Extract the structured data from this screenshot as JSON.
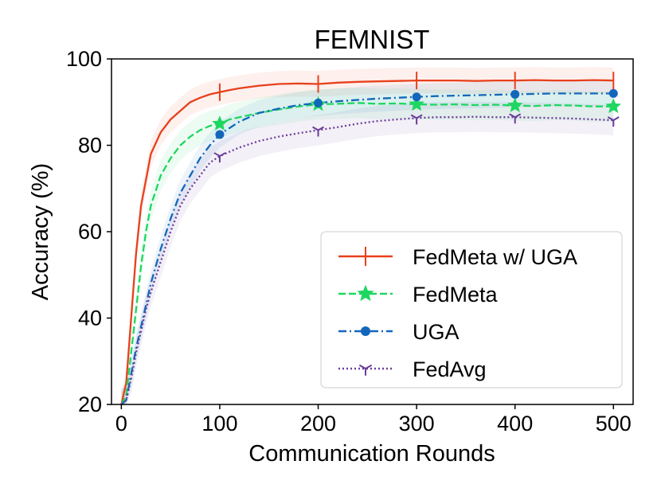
{
  "chart_data": {
    "type": "line",
    "title": "FEMNIST",
    "xlabel": "Communication Rounds",
    "ylabel": "Accuracy (%)",
    "xlim": [
      -10,
      520
    ],
    "ylim": [
      20,
      100
    ],
    "xticks": [
      0,
      100,
      200,
      300,
      400,
      500
    ],
    "yticks": [
      20,
      40,
      60,
      80,
      100
    ],
    "grid": false,
    "legend_position": "lower-right",
    "x": [
      0,
      5,
      10,
      15,
      20,
      25,
      30,
      40,
      50,
      60,
      70,
      80,
      90,
      100,
      110,
      120,
      140,
      160,
      180,
      200,
      220,
      240,
      260,
      280,
      300,
      320,
      340,
      360,
      380,
      400,
      420,
      440,
      460,
      480,
      500
    ],
    "series": [
      {
        "name": "FedMeta w/ UGA",
        "color": "#e8401c",
        "dash": "solid",
        "marker": "vline",
        "marker_x": [
          100,
          200,
          300,
          400,
          500
        ],
        "values": [
          20,
          25,
          40,
          55,
          66,
          72,
          78,
          83,
          86,
          88,
          90,
          91,
          91.8,
          92.3,
          92.8,
          93.2,
          93.8,
          94.2,
          94.3,
          94.2,
          94.5,
          94.7,
          94.8,
          94.9,
          95,
          95,
          95,
          94.9,
          95,
          95,
          95.1,
          95,
          95,
          95.1,
          95
        ],
        "band": 3
      },
      {
        "name": "FedMeta",
        "color": "#1ed760",
        "dash": "dashed",
        "marker": "star",
        "marker_x": [
          100,
          200,
          300,
          400,
          500
        ],
        "values": [
          20,
          22,
          32,
          42,
          52,
          60,
          66,
          73,
          77,
          80,
          82,
          83.5,
          84.5,
          85,
          86,
          86.5,
          87.5,
          88.3,
          89,
          89.5,
          89.6,
          89.8,
          89.6,
          89.7,
          89.5,
          89.4,
          89.5,
          89.3,
          89.4,
          89.2,
          89.1,
          89.3,
          89.2,
          89,
          89
        ],
        "band": 3.5
      },
      {
        "name": "UGA",
        "color": "#1367bb",
        "dash": "dashdot",
        "marker": "dot",
        "marker_x": [
          100,
          200,
          300,
          400,
          500
        ],
        "values": [
          20,
          21,
          27,
          33,
          38,
          43,
          48,
          56,
          63,
          69,
          73,
          77,
          80,
          82.5,
          84,
          85.5,
          87.5,
          88.5,
          89.3,
          89.8,
          90.2,
          90.5,
          90.8,
          91,
          91.2,
          91.4,
          91.5,
          91.6,
          91.7,
          91.8,
          91.9,
          92,
          92,
          92,
          92
        ],
        "band": 3
      },
      {
        "name": "FedAvg",
        "color": "#6a3d9a",
        "dash": "dotted",
        "marker": "tri",
        "marker_x": [
          100,
          200,
          300,
          400,
          500
        ],
        "values": [
          20,
          21,
          26,
          32,
          37,
          42,
          46,
          53,
          60,
          66,
          70,
          73,
          76,
          77.5,
          78.5,
          79.5,
          81,
          82,
          82.8,
          83.5,
          84.2,
          85,
          85.6,
          86,
          86.3,
          86.5,
          86.5,
          86.6,
          86.5,
          86.5,
          86.4,
          86.3,
          86.2,
          86,
          85.8
        ],
        "band": 3.5
      }
    ]
  }
}
